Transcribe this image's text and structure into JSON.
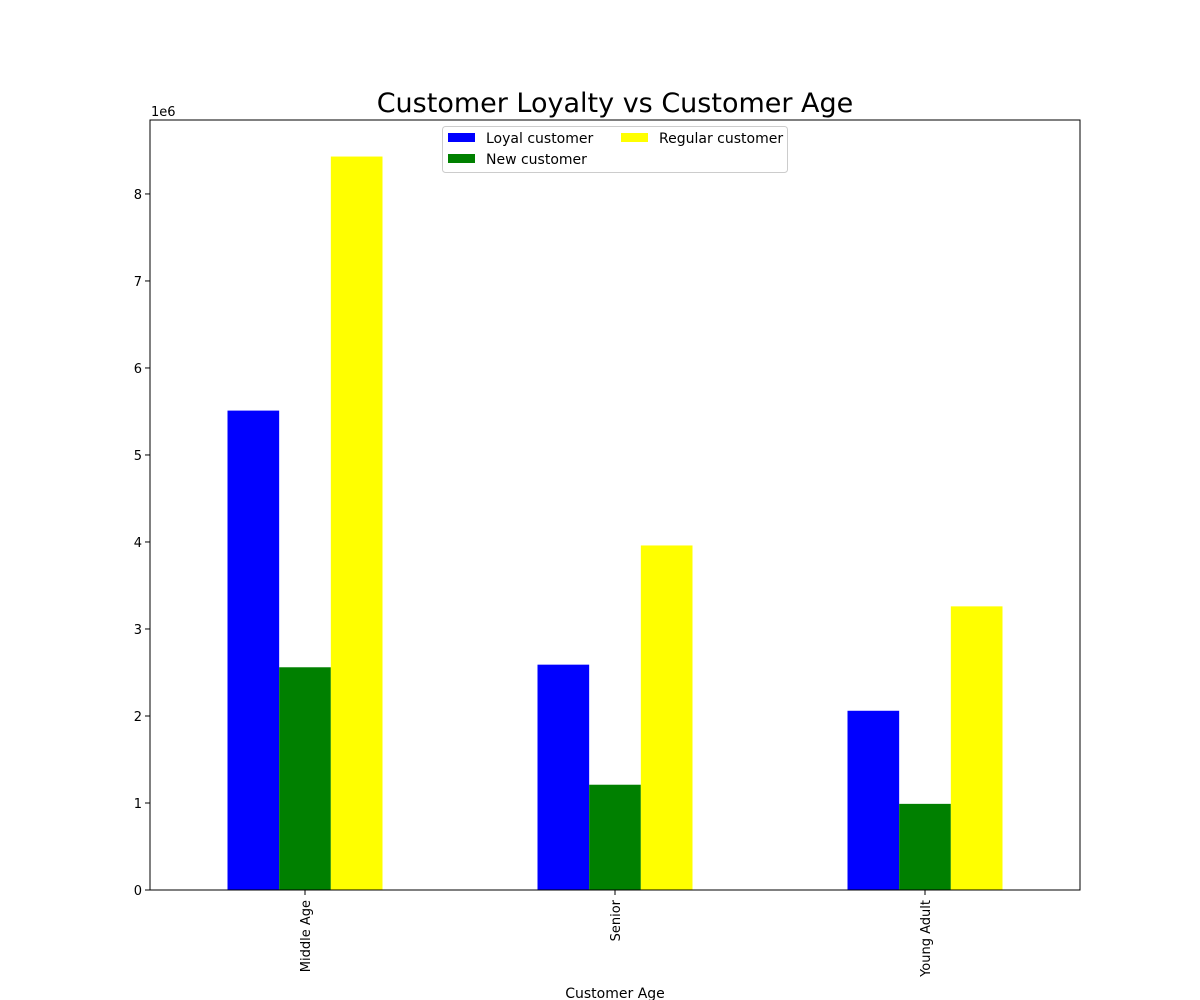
{
  "chart_data": {
    "type": "bar",
    "title": "Customer Loyalty vs Customer Age",
    "xlabel": "Customer Age",
    "ylabel": "",
    "y_offset_label": "1e6",
    "y_scale": 1000000,
    "categories": [
      "Middle Age",
      "Senior",
      "Young Adult"
    ],
    "series": [
      {
        "name": "Loyal customer",
        "color": "#0000ff",
        "values": [
          5510000,
          2590000,
          2060000
        ]
      },
      {
        "name": "New customer",
        "color": "#008000",
        "values": [
          2560000,
          1210000,
          990000
        ]
      },
      {
        "name": "Regular customer",
        "color": "#ffff00",
        "values": [
          8430000,
          3960000,
          3260000
        ]
      }
    ],
    "y_ticks": [
      "0",
      "1",
      "2",
      "3",
      "4",
      "5",
      "6",
      "7",
      "8"
    ],
    "ylim": [
      0,
      8850000
    ],
    "grid": false,
    "legend_position": "upper-center",
    "legend_columns": 2
  }
}
